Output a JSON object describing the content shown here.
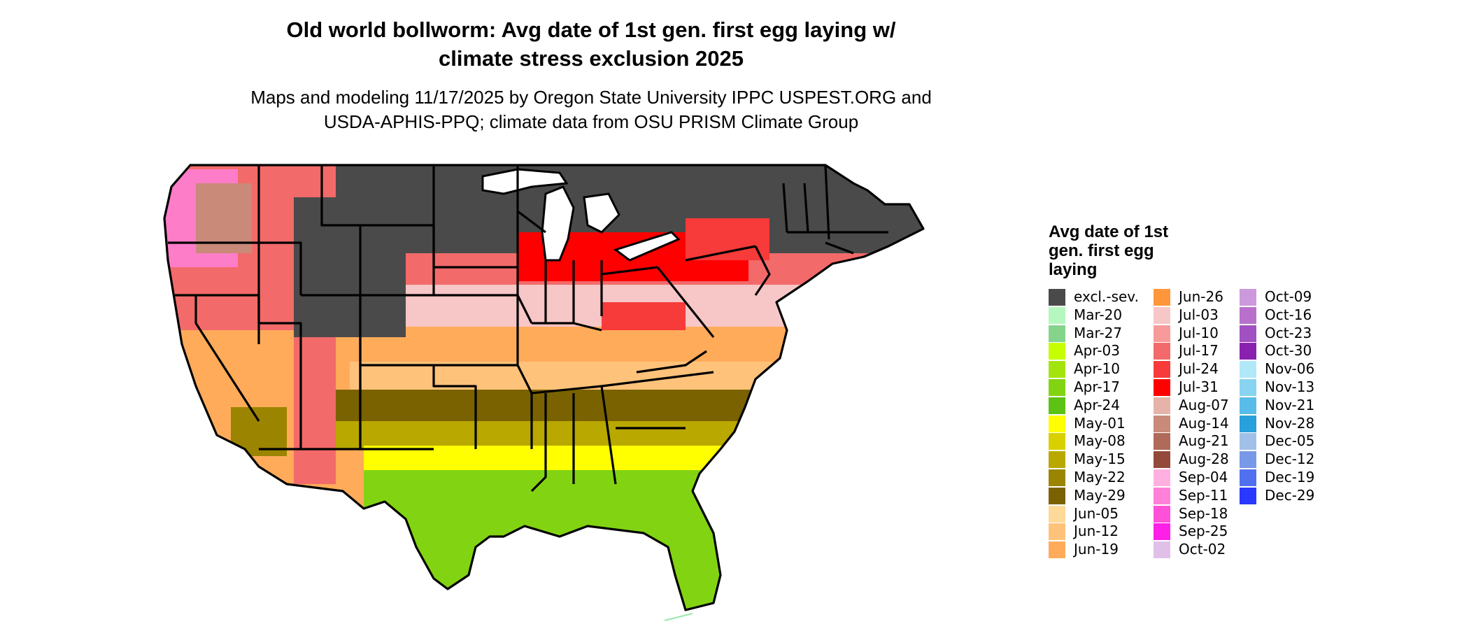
{
  "title_line1": "Old world bollworm: Avg date of 1st gen. first egg laying w/",
  "title_line2": "climate stress exclusion 2025",
  "subtitle_line1": "Maps and modeling 11/17/2025 by Oregon State University IPPC USPEST.ORG and",
  "subtitle_line2": "USDA-APHIS-PPQ; climate data from OSU PRISM Climate Group",
  "legend": {
    "title_lines": [
      "Avg date of 1st",
      "gen. first egg",
      "laying"
    ],
    "columns": [
      [
        {
          "label": "excl.-sev.",
          "color": "#4a4a4a"
        },
        {
          "label": "Mar-20",
          "color": "#b6f7c0"
        },
        {
          "label": "Mar-27",
          "color": "#86d48c"
        },
        {
          "label": "Apr-03",
          "color": "#c6ff00"
        },
        {
          "label": "Apr-10",
          "color": "#a4e40e"
        },
        {
          "label": "Apr-17",
          "color": "#82d412"
        },
        {
          "label": "Apr-24",
          "color": "#5cc214"
        },
        {
          "label": "May-01",
          "color": "#ffff00"
        },
        {
          "label": "May-08",
          "color": "#d9d000"
        },
        {
          "label": "May-15",
          "color": "#b8a800"
        },
        {
          "label": "May-22",
          "color": "#9a8400"
        },
        {
          "label": "May-29",
          "color": "#7a6200"
        },
        {
          "label": "Jun-05",
          "color": "#ffd99a"
        },
        {
          "label": "Jun-12",
          "color": "#ffc27a"
        },
        {
          "label": "Jun-19",
          "color": "#ffab5a"
        }
      ],
      [
        {
          "label": "Jun-26",
          "color": "#ff963a"
        },
        {
          "label": "Jul-03",
          "color": "#f7c6c6"
        },
        {
          "label": "Jul-10",
          "color": "#f79a9a"
        },
        {
          "label": "Jul-17",
          "color": "#f26a6a"
        },
        {
          "label": "Jul-24",
          "color": "#f73a3a"
        },
        {
          "label": "Jul-31",
          "color": "#ff0000"
        },
        {
          "label": "Aug-07",
          "color": "#e6b3a8"
        },
        {
          "label": "Aug-14",
          "color": "#c98a7a"
        },
        {
          "label": "Aug-21",
          "color": "#b06a5a"
        },
        {
          "label": "Aug-28",
          "color": "#944a3a"
        },
        {
          "label": "Sep-04",
          "color": "#ffb0e0"
        },
        {
          "label": "Sep-11",
          "color": "#ff80d8"
        },
        {
          "label": "Sep-18",
          "color": "#ff50d8"
        },
        {
          "label": "Sep-25",
          "color": "#ff20e8"
        },
        {
          "label": "Oct-02",
          "color": "#e0c0e8"
        }
      ],
      [
        {
          "label": "Oct-09",
          "color": "#cc99dd"
        },
        {
          "label": "Oct-16",
          "color": "#b870cc"
        },
        {
          "label": "Oct-23",
          "color": "#a050c0"
        },
        {
          "label": "Oct-30",
          "color": "#8a20b0"
        },
        {
          "label": "Nov-06",
          "color": "#b0e8f8"
        },
        {
          "label": "Nov-13",
          "color": "#88d4f0"
        },
        {
          "label": "Nov-21",
          "color": "#58bce8"
        },
        {
          "label": "Nov-28",
          "color": "#28a0dc"
        },
        {
          "label": "Dec-05",
          "color": "#a0c0e8"
        },
        {
          "label": "Dec-12",
          "color": "#7898e8"
        },
        {
          "label": "Dec-19",
          "color": "#5070f0"
        },
        {
          "label": "Dec-29",
          "color": "#2838ff"
        }
      ]
    ]
  }
}
